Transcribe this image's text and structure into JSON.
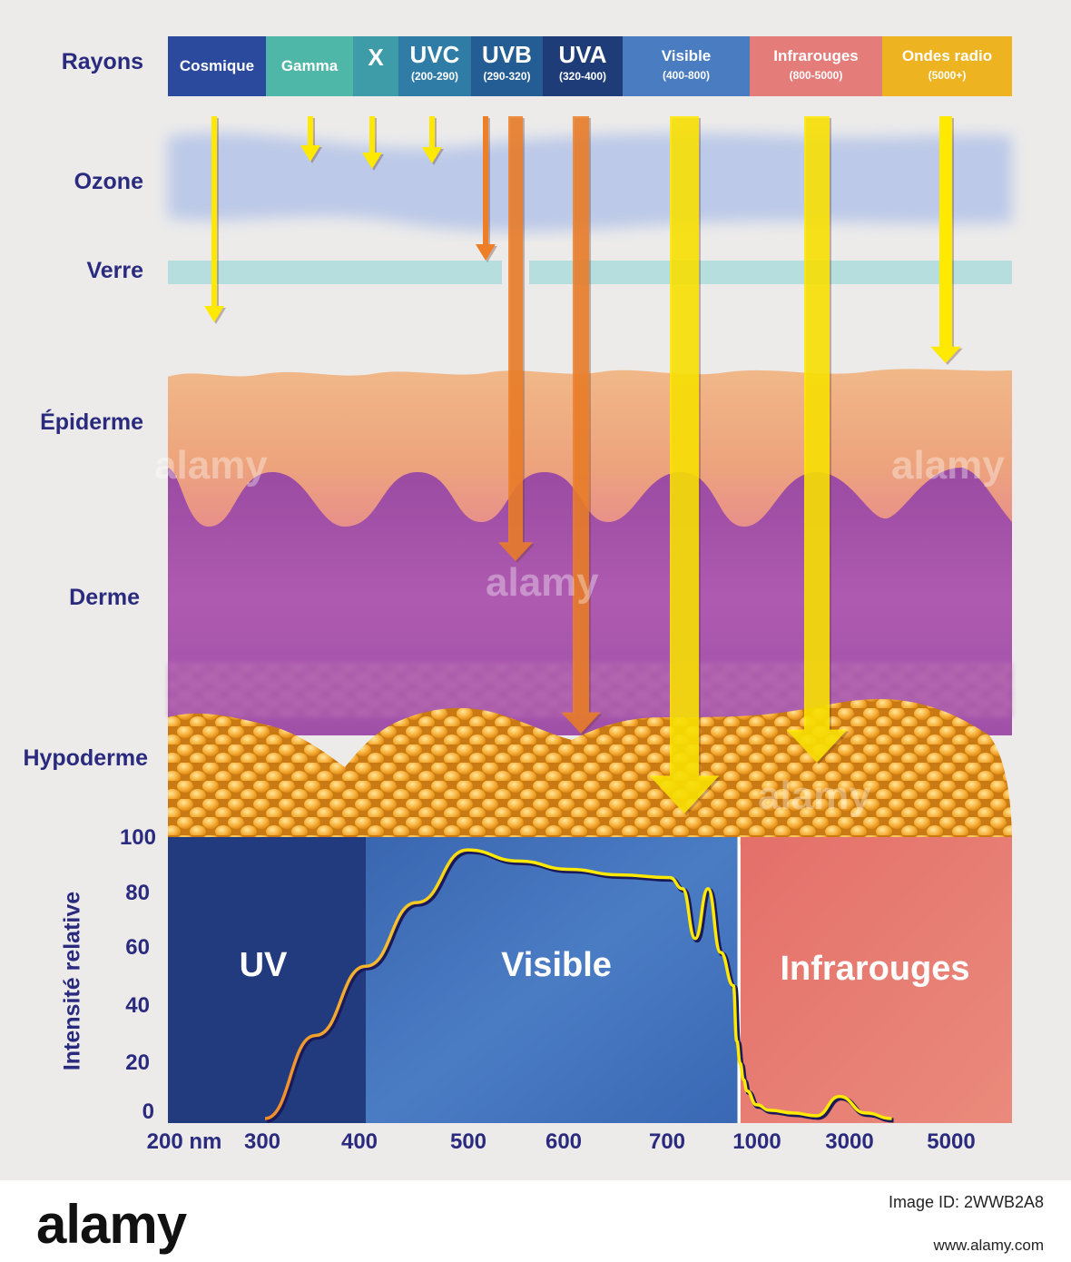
{
  "rows": {
    "rays": "Rayons",
    "ozone": "Ozone",
    "glass": "Verre",
    "epidermis": "Épiderme",
    "dermis": "Derme",
    "hypodermis": "Hypoderme"
  },
  "bands": [
    {
      "name": "Cosmique",
      "range": ""
    },
    {
      "name": "Gamma",
      "range": ""
    },
    {
      "name": "X",
      "range": ""
    },
    {
      "name": "UVC",
      "range": "(200-290)"
    },
    {
      "name": "UVB",
      "range": "(290-320)"
    },
    {
      "name": "UVA",
      "range": "(320-400)"
    },
    {
      "name": "Visible",
      "range": "(400-800)"
    },
    {
      "name": "Infrarouges",
      "range": "(800-5000)"
    },
    {
      "name": "Ondes radio",
      "range": "(5000+)"
    }
  ],
  "colors": {
    "arrow_yellow": "#ffe900",
    "arrow_orange": "#ee7f27",
    "ozone": "#b9c8e8",
    "glass": "#b6dede",
    "epidermis": "#eda680",
    "dermis": "#a553a8",
    "fat": "#f5a623",
    "uv_region": "#223a7e",
    "visible_region": "#3f70b8",
    "ir_region": "#e57d76",
    "label_navy": "#2a2a7e"
  },
  "chart_data": {
    "type": "line",
    "title": "",
    "ylabel": "Intensité relative",
    "xlabel": "",
    "ylim": [
      0,
      100
    ],
    "y_ticks": [
      "100",
      "80",
      "60",
      "40",
      "20",
      "0"
    ],
    "x_ticks": [
      "200 nm",
      "300",
      "400",
      "500",
      "600",
      "700",
      "1000",
      "3000",
      "5000"
    ],
    "regions": [
      {
        "label": "UV",
        "from": "200 nm",
        "to": "400"
      },
      {
        "label": "Visible",
        "from": "400",
        "to": "1000"
      },
      {
        "label": "Infrarouges",
        "from": "1000",
        "to": "5000"
      }
    ],
    "series": [
      {
        "x": [
          300,
          350,
          400,
          450,
          500,
          550,
          600,
          650,
          700,
          720,
          740,
          760,
          780,
          800,
          850,
          900,
          950,
          1000,
          1200,
          1500,
          2000,
          2500,
          3000,
          3500,
          4000
        ],
        "y": [
          0,
          30,
          55,
          78,
          97,
          93,
          90,
          88,
          87,
          83,
          65,
          83,
          60,
          48,
          28,
          20,
          14,
          10,
          5,
          3,
          2,
          1,
          8,
          2,
          0
        ]
      }
    ]
  },
  "watermark": "alamy",
  "footer": {
    "brand": "alamy",
    "image_id_label": "Image ID: 2WWB2A8",
    "url": "www.alamy.com"
  }
}
